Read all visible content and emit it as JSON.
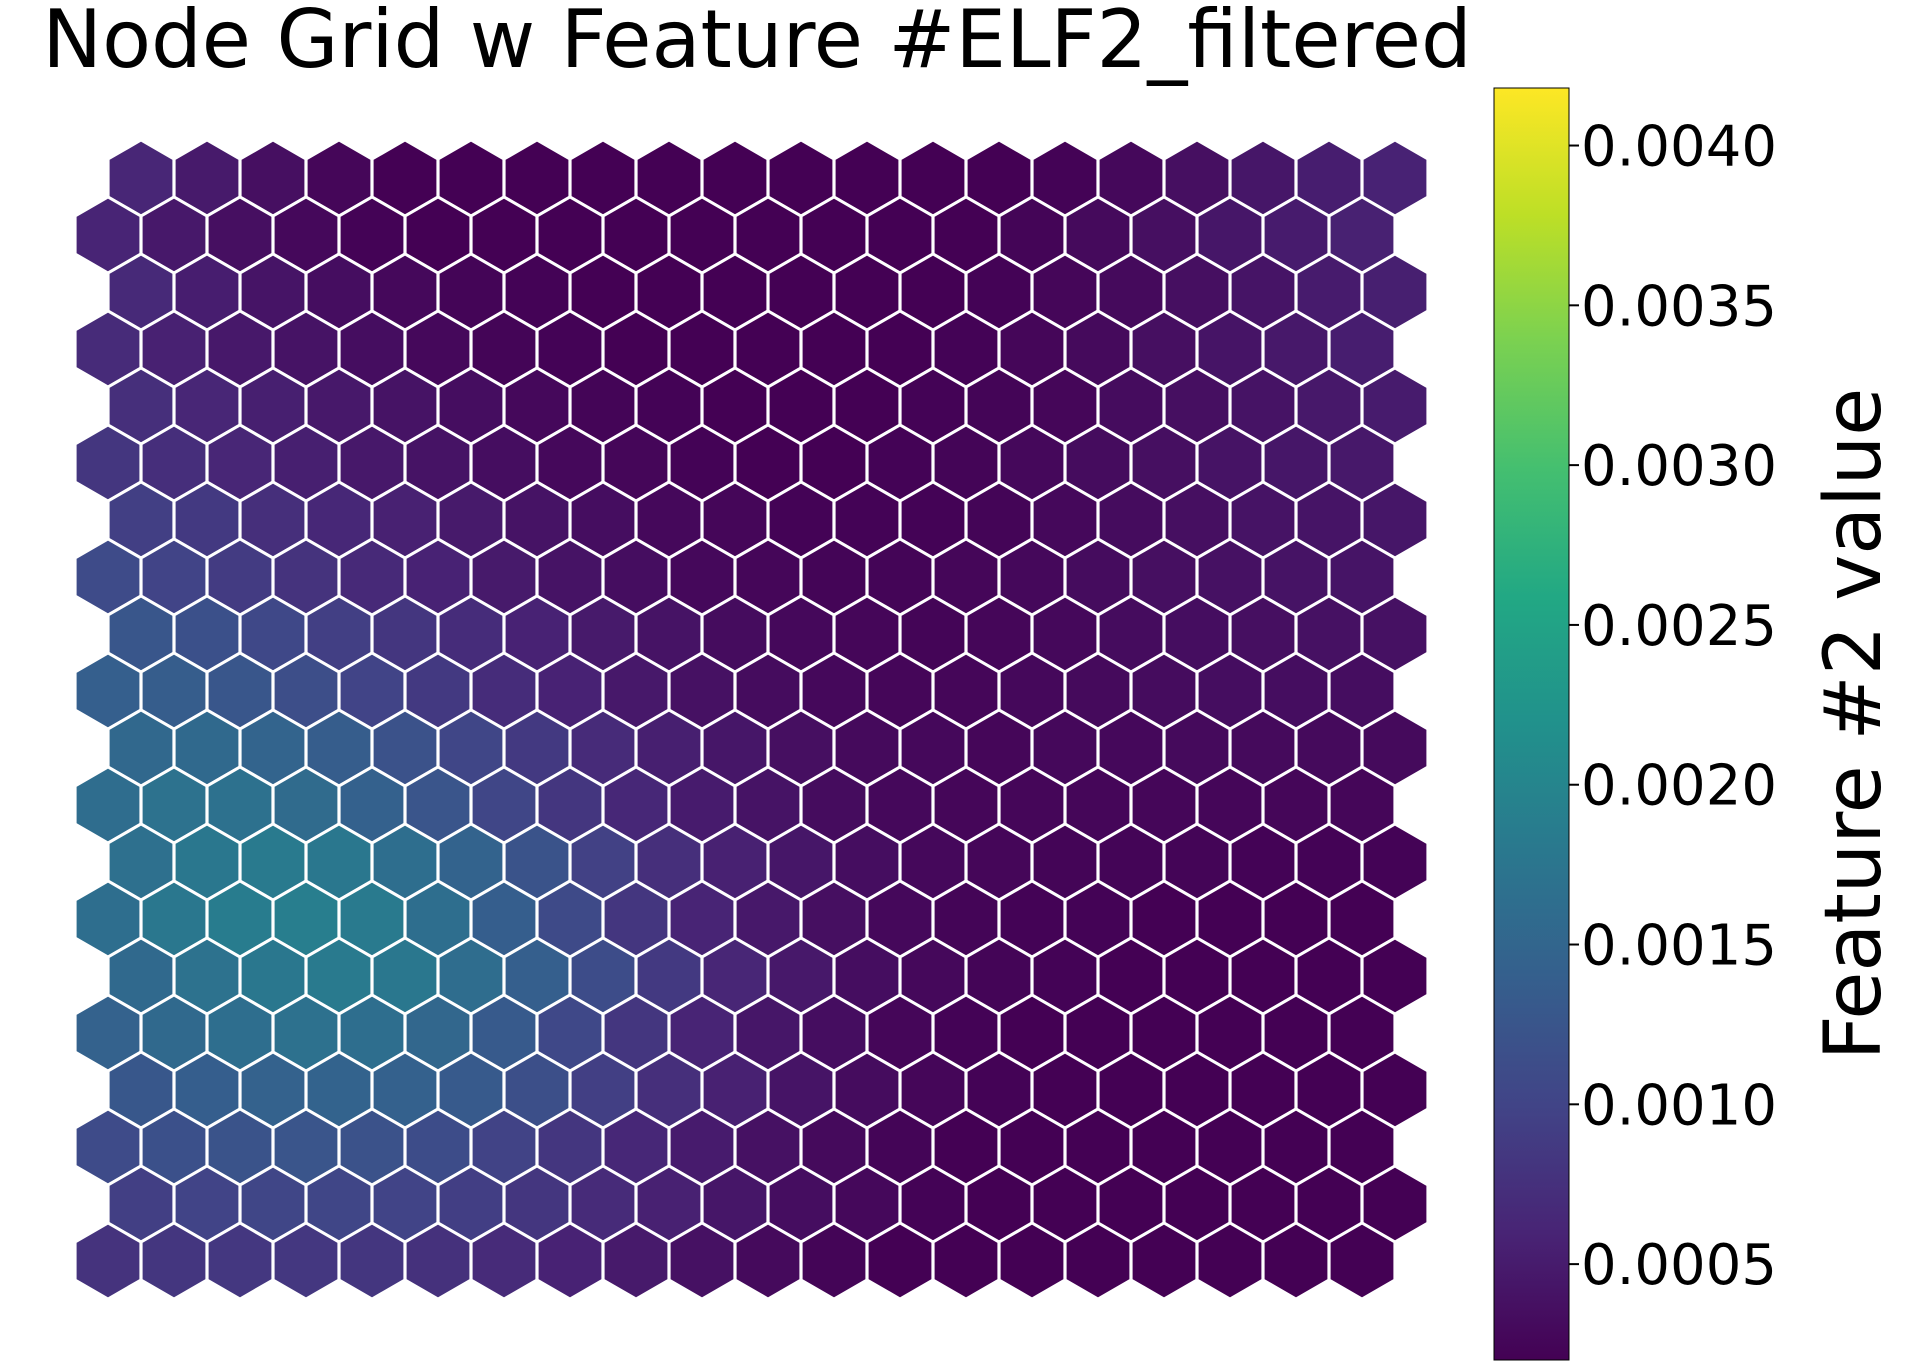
{
  "chart_data": {
    "type": "heatmap",
    "layout": "hexagonal",
    "title": "Node Grid w Feature #ELF2_filtered",
    "colorbar": {
      "label": "Feature #2 value",
      "min": 0.0002,
      "max": 0.00418,
      "colormap": "viridis",
      "ticks": [
        "0.0005",
        "0.0010",
        "0.0015",
        "0.0020",
        "0.0025",
        "0.0030",
        "0.0035",
        "0.0040"
      ],
      "tick_values": [
        0.0005,
        0.001,
        0.0015,
        0.002,
        0.0025,
        0.003,
        0.0035,
        0.004
      ]
    },
    "grid": false,
    "n_columns": 20,
    "n_rows": 20,
    "values": [
      [
        0.00062,
        0.00048,
        0.00036,
        0.00026,
        0.0002,
        0.0002,
        0.0002,
        0.0002,
        0.0002,
        0.0002,
        0.0002,
        0.0002,
        0.0002,
        0.0002,
        0.00022,
        0.00028,
        0.00036,
        0.00044,
        0.00052,
        0.00058
      ],
      [
        0.0006,
        0.00046,
        0.00036,
        0.00028,
        0.00022,
        0.0002,
        0.0002,
        0.0002,
        0.0002,
        0.0002,
        0.0002,
        0.0002,
        0.0002,
        0.0002,
        0.00024,
        0.0003,
        0.00036,
        0.00044,
        0.0005,
        0.00056
      ],
      [
        0.00066,
        0.00052,
        0.00042,
        0.00034,
        0.00028,
        0.00024,
        0.00022,
        0.0002,
        0.0002,
        0.0002,
        0.0002,
        0.0002,
        0.0002,
        0.00022,
        0.00026,
        0.0003,
        0.00036,
        0.00042,
        0.0005,
        0.00054
      ],
      [
        0.00068,
        0.00056,
        0.00046,
        0.0004,
        0.00034,
        0.00028,
        0.00024,
        0.00022,
        0.0002,
        0.0002,
        0.0002,
        0.0002,
        0.0002,
        0.00022,
        0.00026,
        0.0003,
        0.00036,
        0.00042,
        0.00046,
        0.00052
      ],
      [
        0.00074,
        0.00062,
        0.00054,
        0.00046,
        0.0004,
        0.00034,
        0.00028,
        0.00024,
        0.00022,
        0.0002,
        0.0002,
        0.0002,
        0.00022,
        0.00024,
        0.00026,
        0.00032,
        0.00036,
        0.0004,
        0.00046,
        0.0005
      ],
      [
        0.00082,
        0.00072,
        0.00062,
        0.00054,
        0.00046,
        0.0004,
        0.00034,
        0.00028,
        0.00026,
        0.00022,
        0.0002,
        0.0002,
        0.00022,
        0.00024,
        0.00028,
        0.00032,
        0.00036,
        0.0004,
        0.00044,
        0.00046
      ],
      [
        0.00094,
        0.00086,
        0.00074,
        0.00064,
        0.00056,
        0.00048,
        0.0004,
        0.00034,
        0.00028,
        0.00026,
        0.00022,
        0.00022,
        0.00022,
        0.00024,
        0.00028,
        0.00032,
        0.00036,
        0.0004,
        0.00042,
        0.00044
      ],
      [
        0.0011,
        0.001,
        0.00088,
        0.00078,
        0.00066,
        0.00058,
        0.00048,
        0.0004,
        0.00034,
        0.00028,
        0.00026,
        0.00024,
        0.00024,
        0.00026,
        0.00028,
        0.00032,
        0.00036,
        0.00038,
        0.0004,
        0.00042
      ],
      [
        0.00126,
        0.00118,
        0.00106,
        0.00094,
        0.00082,
        0.0007,
        0.00058,
        0.00048,
        0.0004,
        0.00032,
        0.00028,
        0.00026,
        0.00024,
        0.00026,
        0.00028,
        0.00032,
        0.00034,
        0.00036,
        0.00038,
        0.00038
      ],
      [
        0.0014,
        0.00136,
        0.00126,
        0.00114,
        0.001,
        0.00086,
        0.0007,
        0.00058,
        0.00046,
        0.00038,
        0.00032,
        0.00028,
        0.00026,
        0.00026,
        0.00028,
        0.0003,
        0.00032,
        0.00034,
        0.00034,
        0.00034
      ],
      [
        0.00154,
        0.00156,
        0.00148,
        0.00136,
        0.0012,
        0.00102,
        0.00086,
        0.00068,
        0.00054,
        0.00044,
        0.00036,
        0.0003,
        0.00028,
        0.00026,
        0.00028,
        0.00028,
        0.0003,
        0.0003,
        0.0003,
        0.0003
      ],
      [
        0.00162,
        0.0017,
        0.00168,
        0.00158,
        0.00142,
        0.00124,
        0.00102,
        0.00082,
        0.00064,
        0.0005,
        0.0004,
        0.00032,
        0.00028,
        0.00026,
        0.00026,
        0.00026,
        0.00026,
        0.00026,
        0.00026,
        0.00026
      ],
      [
        0.00166,
        0.00178,
        0.00182,
        0.00178,
        0.00164,
        0.00146,
        0.00122,
        0.00096,
        0.00074,
        0.00056,
        0.00044,
        0.00034,
        0.00028,
        0.00026,
        0.00024,
        0.00024,
        0.00024,
        0.00022,
        0.00022,
        0.00022
      ],
      [
        0.00164,
        0.00178,
        0.00186,
        0.00188,
        0.00182,
        0.00164,
        0.00138,
        0.00108,
        0.00082,
        0.0006,
        0.00046,
        0.00036,
        0.00028,
        0.00024,
        0.00022,
        0.00022,
        0.0002,
        0.0002,
        0.0002,
        0.0002
      ],
      [
        0.00156,
        0.0017,
        0.00178,
        0.00182,
        0.00178,
        0.00162,
        0.0014,
        0.00112,
        0.00086,
        0.00062,
        0.00046,
        0.00034,
        0.00028,
        0.00024,
        0.00022,
        0.0002,
        0.0002,
        0.0002,
        0.0002,
        0.0002
      ],
      [
        0.00144,
        0.00156,
        0.00164,
        0.00168,
        0.00164,
        0.00152,
        0.00132,
        0.00106,
        0.00082,
        0.0006,
        0.00044,
        0.00034,
        0.00026,
        0.00022,
        0.0002,
        0.0002,
        0.0002,
        0.0002,
        0.0002,
        0.0002
      ],
      [
        0.00128,
        0.00138,
        0.00144,
        0.00146,
        0.00142,
        0.00132,
        0.00116,
        0.00094,
        0.00074,
        0.00056,
        0.00042,
        0.00032,
        0.00026,
        0.00022,
        0.0002,
        0.0002,
        0.0002,
        0.0002,
        0.0002,
        0.0002
      ],
      [
        0.0011,
        0.00118,
        0.00122,
        0.00124,
        0.0012,
        0.00112,
        0.00098,
        0.00082,
        0.00064,
        0.0005,
        0.00038,
        0.0003,
        0.00024,
        0.0002,
        0.0002,
        0.0002,
        0.0002,
        0.0002,
        0.0002,
        0.0002
      ],
      [
        0.00094,
        0.001,
        0.00102,
        0.00102,
        0.001,
        0.00092,
        0.00082,
        0.00068,
        0.00056,
        0.00044,
        0.00034,
        0.00028,
        0.00022,
        0.0002,
        0.0002,
        0.0002,
        0.0002,
        0.0002,
        0.0002,
        0.0002
      ],
      [
        0.00078,
        0.00082,
        0.00084,
        0.00084,
        0.00082,
        0.00076,
        0.00068,
        0.00058,
        0.00048,
        0.00038,
        0.0003,
        0.00024,
        0.0002,
        0.0002,
        0.0002,
        0.0002,
        0.0002,
        0.0002,
        0.0002,
        0.0002
      ]
    ]
  }
}
